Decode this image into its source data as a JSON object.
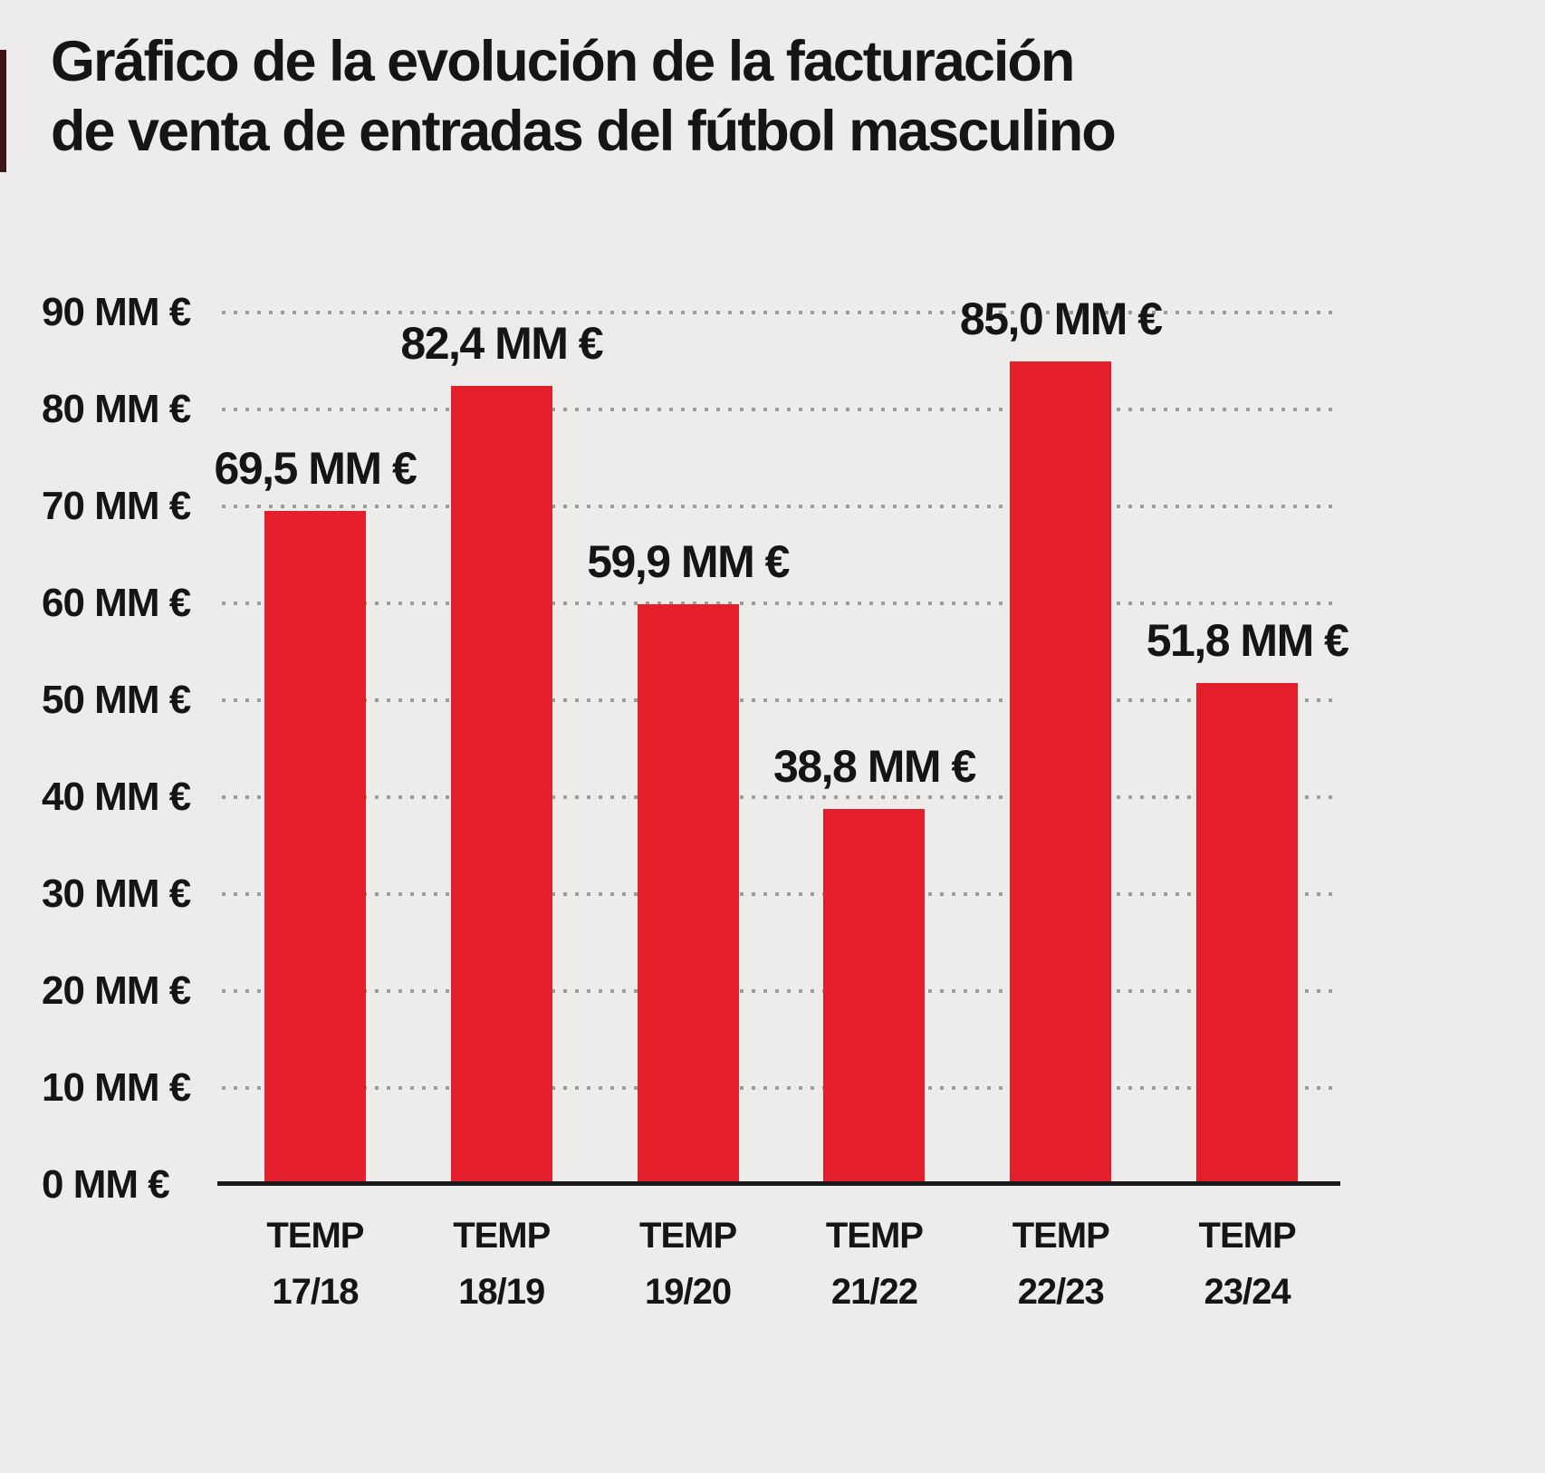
{
  "header": {
    "title": "Gráfico de la evolución de la facturación\nde venta de entradas del fútbol masculino"
  },
  "colors": {
    "background": "#edecea",
    "bar": "#e51e2b",
    "text": "#151515",
    "gridline": "#9d9c99",
    "axis": "#1a1a1a",
    "edge_strip": "#3f1317"
  },
  "chart_data": {
    "type": "bar",
    "title": "Gráfico de la evolución de la facturación de venta de entradas del fútbol masculino",
    "categories": [
      "TEMP\n17/18",
      "TEMP\n18/19",
      "TEMP\n19/20",
      "TEMP\n21/22",
      "TEMP\n22/23",
      "TEMP\n23/24"
    ],
    "values": [
      69.5,
      82.4,
      59.9,
      38.8,
      85.0,
      51.8
    ],
    "value_labels": [
      "69,5 MM €",
      "82,4 MM €",
      "59,9 MM €",
      "38,8 MM €",
      "85,0 MM €",
      "51,8 MM €"
    ],
    "xlabel": "",
    "ylabel": "",
    "ylim": [
      0,
      90
    ],
    "y_ticks": [
      0,
      10,
      20,
      30,
      40,
      50,
      60,
      70,
      80,
      90
    ],
    "y_tick_labels": [
      "0 MM €",
      "10 MM €",
      "20 MM €",
      "30 MM €",
      "40 MM €",
      "50 MM €",
      "60 MM €",
      "70 MM €",
      "80 MM €",
      "90 MM €"
    ],
    "grid": "horizontal-dotted",
    "legend": "none",
    "bar_color": "#e51e2b"
  }
}
